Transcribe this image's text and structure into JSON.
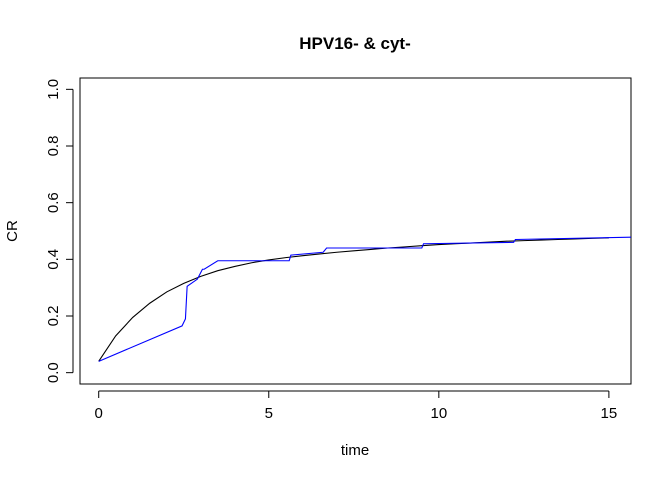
{
  "chart_data": {
    "type": "line",
    "title": "HPV16- & cyt-",
    "xlabel": "time",
    "ylabel": "CR",
    "xlim": [
      -0.55,
      15.65
    ],
    "ylim": [
      -0.04,
      1.04
    ],
    "xticks": [
      0,
      5,
      10,
      15
    ],
    "yticks": [
      0.0,
      0.2,
      0.4,
      0.6,
      0.8,
      1.0
    ],
    "xtick_labels": [
      "0",
      "5",
      "10",
      "15"
    ],
    "ytick_labels": [
      "0.0",
      "0.2",
      "0.4",
      "0.6",
      "0.8",
      "1.0"
    ],
    "grid": false,
    "legend": "none",
    "series": [
      {
        "color": "#000000",
        "style": "smooth",
        "x": [
          0,
          0.5,
          1,
          1.5,
          2,
          2.5,
          3,
          3.5,
          4,
          4.5,
          5,
          5.5,
          6,
          6.5,
          7,
          7.5,
          8,
          8.5,
          9,
          9.5,
          10,
          10.5,
          11,
          11.5,
          12,
          12.5,
          13,
          13.5,
          14,
          14.5,
          15
        ],
        "y": [
          0.04,
          0.13,
          0.195,
          0.245,
          0.285,
          0.315,
          0.34,
          0.36,
          0.375,
          0.388,
          0.398,
          0.406,
          0.413,
          0.419,
          0.425,
          0.43,
          0.435,
          0.44,
          0.444,
          0.448,
          0.452,
          0.455,
          0.458,
          0.461,
          0.464,
          0.466,
          0.468,
          0.47,
          0.472,
          0.474,
          0.476
        ]
      },
      {
        "color": "#0000ff",
        "style": "step",
        "x": [
          0,
          2.45,
          2.55,
          2.6,
          2.9,
          3.05,
          3.1,
          3.5,
          5.6,
          5.65,
          6.6,
          6.7,
          9.5,
          9.55,
          12.2,
          12.25,
          15.65
        ],
        "y": [
          0.04,
          0.165,
          0.19,
          0.305,
          0.33,
          0.365,
          0.365,
          0.395,
          0.395,
          0.415,
          0.425,
          0.44,
          0.44,
          0.455,
          0.46,
          0.47,
          0.478
        ]
      }
    ]
  }
}
